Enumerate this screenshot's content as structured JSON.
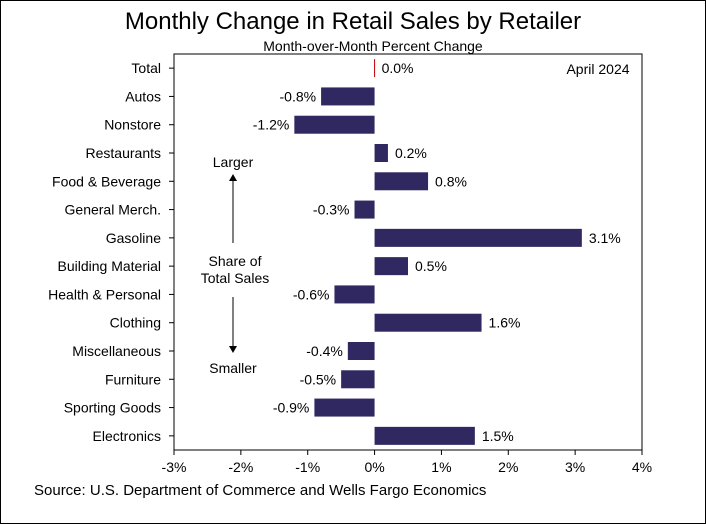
{
  "chart_data": {
    "type": "bar",
    "orientation": "horizontal",
    "title": "Monthly Change in Retail Sales by Retailer",
    "subtitle": "Month-over-Month Percent Change",
    "annotation_date": "April 2024",
    "categories": [
      "Total",
      "Autos",
      "Nonstore",
      "Restaurants",
      "Food & Beverage",
      "General Merch.",
      "Gasoline",
      "Building Material",
      "Health & Personal",
      "Clothing",
      "Miscellaneous",
      "Furniture",
      "Sporting Goods",
      "Electronics"
    ],
    "values": [
      0.0,
      -0.8,
      -1.2,
      0.2,
      0.8,
      -0.3,
      3.1,
      0.5,
      -0.6,
      1.6,
      -0.4,
      -0.5,
      -0.9,
      1.5
    ],
    "value_labels": [
      "0.0%",
      "-0.8%",
      "-1.2%",
      "0.2%",
      "0.8%",
      "-0.3%",
      "3.1%",
      "0.5%",
      "-0.6%",
      "1.6%",
      "-0.4%",
      "-0.5%",
      "-0.9%",
      "1.5%"
    ],
    "xlim": [
      -3,
      4
    ],
    "xticks": [
      -3,
      -2,
      -1,
      0,
      1,
      2,
      3,
      4
    ],
    "xtick_labels": [
      "-3%",
      "-2%",
      "-1%",
      "0%",
      "1%",
      "2%",
      "3%",
      "4%"
    ],
    "bar_color": "#2f2861",
    "axis_annotation": {
      "top": "Larger",
      "middle": [
        "Share of",
        "Total Sales"
      ],
      "bottom": "Smaller"
    },
    "source": "Source: U.S. Department of Commerce and Wells Fargo Economics"
  }
}
